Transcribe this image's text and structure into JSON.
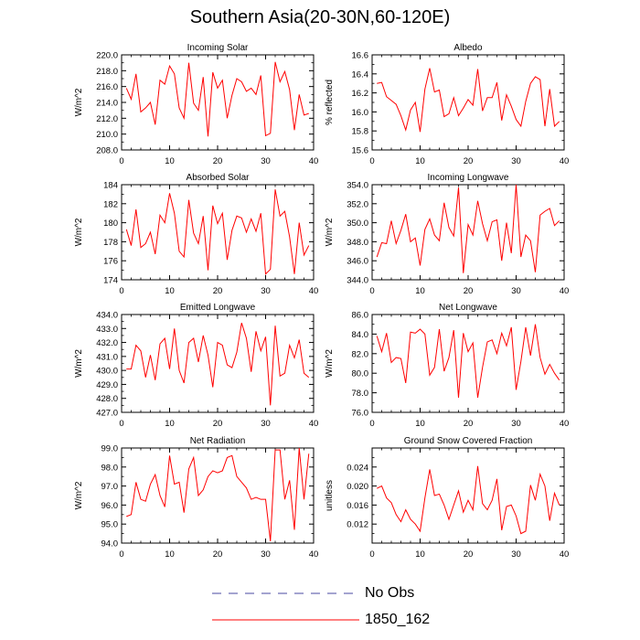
{
  "title": "Southern Asia(20-30N,60-120E)",
  "legend": [
    {
      "label": "No Obs",
      "color": "#4a4aa0",
      "style": "dashed"
    },
    {
      "label": "1850_162",
      "color": "#ff0000",
      "style": "solid"
    }
  ],
  "chart_data": [
    {
      "type": "line",
      "title": "Incoming Solar",
      "ylabel": "W/m^2",
      "xlim": [
        0,
        40
      ],
      "xticks": [
        "0",
        "10",
        "20",
        "30",
        "40"
      ],
      "ylim": [
        208,
        220
      ],
      "yticks": [
        "208.0",
        "210.0",
        "212.0",
        "214.0",
        "216.0",
        "218.0",
        "220.0"
      ],
      "series": [
        {
          "name": "1850_162",
          "color": "#ff0000",
          "x": [
            1,
            2,
            3,
            4,
            5,
            6,
            7,
            8,
            9,
            10,
            11,
            12,
            13,
            14,
            15,
            16,
            17,
            18,
            19,
            20,
            21,
            22,
            23,
            24,
            25,
            26,
            27,
            28,
            29,
            30,
            31,
            32,
            33,
            34,
            35,
            36,
            37,
            38,
            39
          ],
          "y": [
            215.8,
            214.4,
            217.6,
            212.8,
            213.3,
            214.0,
            211.2,
            216.8,
            216.3,
            218.6,
            217.6,
            213.3,
            212.0,
            219.0,
            213.9,
            213.0,
            217.2,
            209.7,
            217.8,
            215.8,
            216.8,
            212.0,
            214.9,
            217.0,
            216.6,
            215.4,
            215.8,
            215.0,
            217.4,
            209.8,
            210.1,
            219.1,
            216.6,
            217.9,
            215.6,
            210.5,
            215.0,
            212.4,
            212.6
          ]
        }
      ]
    },
    {
      "type": "line",
      "title": "Albedo",
      "ylabel": "% reflected",
      "xlim": [
        0,
        40
      ],
      "xticks": [
        "0",
        "10",
        "20",
        "30",
        "40"
      ],
      "ylim": [
        15.6,
        16.6
      ],
      "yticks": [
        "15.6",
        "15.8",
        "16.0",
        "16.2",
        "16.4",
        "16.6"
      ],
      "series": [
        {
          "name": "1850_162",
          "color": "#ff0000",
          "x": [
            1,
            2,
            3,
            4,
            5,
            6,
            7,
            8,
            9,
            10,
            11,
            12,
            13,
            14,
            15,
            16,
            17,
            18,
            19,
            20,
            21,
            22,
            23,
            24,
            25,
            26,
            27,
            28,
            29,
            30,
            31,
            32,
            33,
            34,
            35,
            36,
            37,
            38,
            39
          ],
          "y": [
            16.3,
            16.31,
            16.16,
            16.12,
            16.08,
            15.96,
            15.81,
            16.02,
            16.1,
            15.79,
            16.24,
            16.46,
            16.21,
            16.23,
            15.95,
            15.98,
            16.15,
            15.96,
            16.04,
            16.13,
            16.07,
            16.45,
            16.01,
            16.15,
            16.15,
            16.31,
            15.91,
            16.18,
            16.06,
            15.92,
            15.85,
            16.11,
            16.3,
            16.37,
            16.34,
            15.85,
            16.24,
            15.85,
            15.9
          ]
        }
      ]
    },
    {
      "type": "line",
      "title": "Absorbed Solar",
      "ylabel": "W/m^2",
      "xlim": [
        0,
        40
      ],
      "xticks": [
        "0",
        "10",
        "20",
        "30",
        "40"
      ],
      "ylim": [
        174,
        184
      ],
      "yticks": [
        "174",
        "176",
        "178",
        "180",
        "182",
        "184"
      ],
      "series": [
        {
          "name": "1850_162",
          "color": "#ff0000",
          "x": [
            1,
            2,
            3,
            4,
            5,
            6,
            7,
            8,
            9,
            10,
            11,
            12,
            13,
            14,
            15,
            16,
            17,
            18,
            19,
            20,
            21,
            22,
            23,
            24,
            25,
            26,
            27,
            28,
            29,
            30,
            31,
            32,
            33,
            34,
            35,
            36,
            37,
            38,
            39
          ],
          "y": [
            179.3,
            177.6,
            181.4,
            177.4,
            177.8,
            179.0,
            176.7,
            180.8,
            180.0,
            183.1,
            181.0,
            177.0,
            176.4,
            182.4,
            178.9,
            177.8,
            180.7,
            175.0,
            181.8,
            179.9,
            181.0,
            176.1,
            179.2,
            180.7,
            180.5,
            179.0,
            180.4,
            179.1,
            181.0,
            174.6,
            175.1,
            183.5,
            180.7,
            181.2,
            178.5,
            174.6,
            180.0,
            176.6,
            177.6
          ]
        }
      ]
    },
    {
      "type": "line",
      "title": "Incoming Longwave",
      "ylabel": "W/m^2",
      "xlim": [
        0,
        40
      ],
      "xticks": [
        "0",
        "10",
        "20",
        "30",
        "40"
      ],
      "ylim": [
        344,
        354
      ],
      "yticks": [
        "344.0",
        "346.0",
        "348.0",
        "350.0",
        "352.0",
        "354.0"
      ],
      "series": [
        {
          "name": "1850_162",
          "color": "#ff0000",
          "x": [
            1,
            2,
            3,
            4,
            5,
            6,
            7,
            8,
            9,
            10,
            11,
            12,
            13,
            14,
            15,
            16,
            17,
            18,
            19,
            20,
            21,
            22,
            23,
            24,
            25,
            26,
            27,
            28,
            29,
            30,
            31,
            32,
            33,
            34,
            35,
            36,
            37,
            38,
            39
          ],
          "y": [
            346.4,
            347.9,
            347.8,
            350.2,
            347.8,
            349.2,
            350.9,
            348.0,
            348.4,
            345.5,
            349.3,
            350.4,
            348.7,
            348.1,
            352.1,
            349.5,
            348.6,
            353.7,
            344.7,
            349.8,
            348.7,
            352.3,
            349.9,
            348.1,
            350.1,
            350.3,
            346.0,
            350.0,
            346.8,
            354.0,
            346.4,
            348.7,
            348.1,
            344.8,
            350.8,
            351.2,
            351.5,
            349.7,
            350.2
          ]
        }
      ]
    },
    {
      "type": "line",
      "title": "Emitted Longwave",
      "ylabel": "W/m^2",
      "xlim": [
        0,
        40
      ],
      "xticks": [
        "0",
        "10",
        "20",
        "30",
        "40"
      ],
      "ylim": [
        427,
        434
      ],
      "yticks": [
        "427.0",
        "428.0",
        "429.0",
        "430.0",
        "431.0",
        "432.0",
        "433.0",
        "434.0"
      ],
      "series": [
        {
          "name": "1850_162",
          "color": "#ff0000",
          "x": [
            1,
            2,
            3,
            4,
            5,
            6,
            7,
            8,
            9,
            10,
            11,
            12,
            13,
            14,
            15,
            16,
            17,
            18,
            19,
            20,
            21,
            22,
            23,
            24,
            25,
            26,
            27,
            28,
            29,
            30,
            31,
            32,
            33,
            34,
            35,
            36,
            37,
            38,
            39
          ],
          "y": [
            430.1,
            430.1,
            431.8,
            431.4,
            429.5,
            431.1,
            429.3,
            431.9,
            432.3,
            430.1,
            433.0,
            430.0,
            429.1,
            432.0,
            432.3,
            430.6,
            432.5,
            431.1,
            428.8,
            432.0,
            431.8,
            430.4,
            430.2,
            431.3,
            433.4,
            432.3,
            429.9,
            432.8,
            431.4,
            432.4,
            427.5,
            433.2,
            429.6,
            429.8,
            431.8,
            430.9,
            432.2,
            429.8,
            429.5
          ]
        }
      ]
    },
    {
      "type": "line",
      "title": "Net Longwave",
      "ylabel": "W/m^2",
      "xlim": [
        0,
        40
      ],
      "xticks": [
        "0",
        "10",
        "20",
        "30",
        "40"
      ],
      "ylim": [
        76,
        86
      ],
      "yticks": [
        "76.0",
        "78.0",
        "80.0",
        "82.0",
        "84.0",
        "86.0"
      ],
      "series": [
        {
          "name": "1850_162",
          "color": "#ff0000",
          "x": [
            1,
            2,
            3,
            4,
            5,
            6,
            7,
            8,
            9,
            10,
            11,
            12,
            13,
            14,
            15,
            16,
            17,
            18,
            19,
            20,
            21,
            22,
            23,
            24,
            25,
            26,
            27,
            28,
            29,
            30,
            31,
            32,
            33,
            34,
            35,
            36,
            37,
            38,
            39
          ],
          "y": [
            83.8,
            82.2,
            84.1,
            81.1,
            81.6,
            81.5,
            79.0,
            84.2,
            84.1,
            84.5,
            84.0,
            79.8,
            80.6,
            84.5,
            80.2,
            81.6,
            84.4,
            77.5,
            84.1,
            82.2,
            83.1,
            77.5,
            80.6,
            83.2,
            83.4,
            82.0,
            84.1,
            82.8,
            84.7,
            78.3,
            81.2,
            84.7,
            81.8,
            85.0,
            81.6,
            79.9,
            80.9,
            80.0,
            79.3
          ]
        }
      ]
    },
    {
      "type": "line",
      "title": "Net Radiation",
      "ylabel": "W/m^2",
      "xlim": [
        0,
        40
      ],
      "xticks": [
        "0",
        "10",
        "20",
        "30",
        "40"
      ],
      "ylim": [
        94,
        99
      ],
      "yticks": [
        "94.0",
        "95.0",
        "96.0",
        "97.0",
        "98.0",
        "99.0"
      ],
      "series": [
        {
          "name": "1850_162",
          "color": "#ff0000",
          "x": [
            1,
            2,
            3,
            4,
            5,
            6,
            7,
            8,
            9,
            10,
            11,
            12,
            13,
            14,
            15,
            16,
            17,
            18,
            19,
            20,
            21,
            22,
            23,
            24,
            25,
            26,
            27,
            28,
            29,
            30,
            31,
            32,
            33,
            34,
            35,
            36,
            37,
            38,
            39
          ],
          "y": [
            95.4,
            95.5,
            97.2,
            96.3,
            96.2,
            97.1,
            97.6,
            96.5,
            95.9,
            98.6,
            97.1,
            97.2,
            95.6,
            97.9,
            98.5,
            96.5,
            96.8,
            97.5,
            97.8,
            97.7,
            97.8,
            98.5,
            98.6,
            97.5,
            97.2,
            96.9,
            96.3,
            96.4,
            96.3,
            96.3,
            94.1,
            98.9,
            98.9,
            96.3,
            97.3,
            94.7,
            99.0,
            96.3,
            98.7
          ]
        }
      ]
    },
    {
      "type": "line",
      "title": "Ground Snow Covered Fraction",
      "ylabel": "unitless",
      "xlim": [
        0,
        40
      ],
      "xticks": [
        "0",
        "10",
        "20",
        "30",
        "40"
      ],
      "ylim": [
        0.008,
        0.028
      ],
      "yticks": [
        "0.012",
        "0.016",
        "0.020",
        "0.024"
      ],
      "series": [
        {
          "name": "1850_162",
          "color": "#ff0000",
          "x": [
            1,
            2,
            3,
            4,
            5,
            6,
            7,
            8,
            9,
            10,
            11,
            12,
            13,
            14,
            15,
            16,
            17,
            18,
            19,
            20,
            21,
            22,
            23,
            24,
            25,
            26,
            27,
            28,
            29,
            30,
            31,
            32,
            33,
            34,
            35,
            36,
            37,
            38,
            39
          ],
          "y": [
            0.0195,
            0.02,
            0.0175,
            0.0165,
            0.014,
            0.0125,
            0.015,
            0.013,
            0.012,
            0.0105,
            0.0175,
            0.0235,
            0.018,
            0.0183,
            0.016,
            0.013,
            0.016,
            0.019,
            0.0145,
            0.017,
            0.015,
            0.0242,
            0.0163,
            0.015,
            0.017,
            0.0215,
            0.0107,
            0.0157,
            0.016,
            0.0137,
            0.01,
            0.0105,
            0.0202,
            0.017,
            0.0225,
            0.02,
            0.0127,
            0.0185,
            0.016
          ]
        }
      ]
    }
  ]
}
